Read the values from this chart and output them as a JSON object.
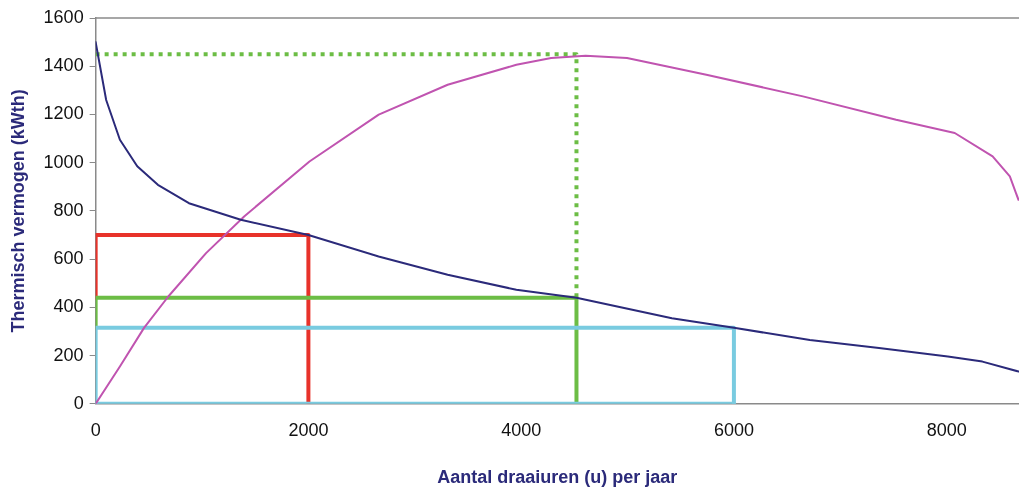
{
  "chart_data": {
    "type": "line",
    "xlabel": "Aantal draaiuren (u) per jaar",
    "ylabel": "Thermisch vermogen (kWth)",
    "xlim": [
      0,
      8680
    ],
    "ylim": [
      0,
      1600
    ],
    "xticks": [
      0,
      2000,
      4000,
      6000,
      8000
    ],
    "yticks": [
      0,
      200,
      400,
      600,
      800,
      1000,
      1200,
      1400,
      1600
    ],
    "grid": false,
    "legend": false,
    "marker": "none",
    "line_style": "solid",
    "series": [
      {
        "color": "#2b2a7a",
        "x": [
          0,
          99,
          228,
          391,
          585,
          877,
          1364,
          2000,
          2660,
          3309,
          3955,
          4520,
          5417,
          6000,
          6714,
          7364,
          8011,
          8336,
          8675
        ],
        "values": [
          1500,
          1260,
          1095,
          985,
          908,
          832,
          763,
          700,
          611,
          535,
          473,
          440,
          355,
          315,
          265,
          231,
          196,
          175,
          134
        ]
      },
      {
        "color": "#c054b0",
        "x": [
          0,
          228,
          455,
          683,
          1038,
          1396,
          2010,
          2661,
          3309,
          3955,
          4282,
          4606,
          4995,
          5741,
          6649,
          7525,
          8076,
          8432,
          8594,
          8675
        ],
        "values": [
          0,
          155,
          315,
          445,
          625,
          777,
          1005,
          1199,
          1323,
          1406,
          1434,
          1443,
          1434,
          1365,
          1275,
          1178,
          1123,
          1026,
          943,
          846
        ]
      },
      {
        "color": "#79cbe0",
        "x": [
          0,
          0,
          6000,
          6000
        ],
        "values": [
          0,
          315,
          315,
          0
        ]
      },
      {
        "color": "#79cbe0",
        "x": [
          0,
          6000
        ],
        "values": [
          0,
          0
        ]
      },
      {
        "color": "#6cbd45",
        "x": [
          0,
          0,
          4520,
          4520
        ],
        "values": [
          315,
          440,
          440,
          0
        ]
      },
      {
        "color": "#e8322a",
        "x": [
          0,
          0,
          2000,
          2000
        ],
        "values": [
          440,
          700,
          700,
          0
        ]
      },
      {
        "color": "#6cbd45",
        "line_style": "dotted",
        "x": [
          0,
          4520,
          4520
        ],
        "values": [
          1450,
          1450,
          440
        ]
      }
    ]
  }
}
